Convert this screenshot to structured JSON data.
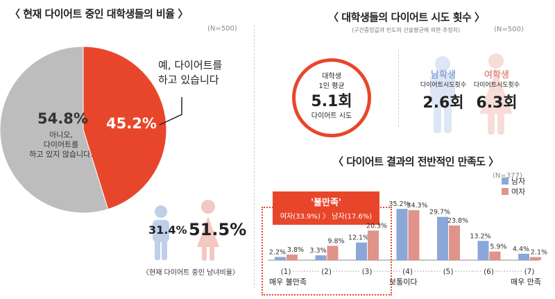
{
  "left": {
    "title": "〈 현재 다이어트 중인 대학생들의 비율 〉",
    "n": "(N=500)",
    "pie": {
      "yes_pct": "45.2%",
      "yes_label_1": "예, 다이어트를",
      "yes_label_2": "하고 있습니다",
      "no_pct": "54.8%",
      "no_label_1": "아니오,",
      "no_label_2": "다이어트를",
      "no_label_3": "하고 있지 않습니다."
    },
    "gender": {
      "male_pct": "31.4%",
      "female_pct": "51.5%",
      "caption": "〈현재 다이어트 중인 남녀비율〉"
    }
  },
  "right_top": {
    "title": "〈 대학생들의 다이어트 시도 횟수 〉",
    "subtitle": "(구간중앙값과 빈도의 산술평균에 의한 추정치)",
    "n": "(N=500)",
    "circle": {
      "l1": "대학생",
      "l2": "1인 평균",
      "value": "5.1회",
      "l3": "다이어트 시도"
    },
    "male": {
      "label": "남학생",
      "sub": "다이어트시도횟수",
      "value": "2.6회"
    },
    "female": {
      "label": "여학생",
      "sub": "다이어트시도횟수",
      "value": "6.3회"
    }
  },
  "right_bottom": {
    "title": "〈 다이어트 결과의 전반적인 만족도 〉",
    "n": "(N=377)",
    "callout_title": "'불만족'",
    "callout_detail": "여자(33.9%) 〉 남자(17.6%)",
    "left_end": "매우 불만족",
    "mid": "보통이다",
    "right_end": "매우 만족"
  },
  "colors": {
    "orange": "#e8462a",
    "gray": "#bdbdbd",
    "blue": "#8aa7d8",
    "pink": "#e0938b",
    "male_icon": "#bfcfea",
    "female_icon": "#f3c7c2"
  },
  "chart_data": [
    {
      "type": "pie",
      "title": "현재 다이어트 중인 대학생들의 비율",
      "slices": [
        {
          "label": "예, 다이어트를 하고 있습니다",
          "value": 45.2
        },
        {
          "label": "아니오, 다이어트를 하고 있지 않습니다.",
          "value": 54.8
        }
      ]
    },
    {
      "type": "bar",
      "title": "다이어트 결과의 전반적인 만족도",
      "categories": [
        "(1)",
        "(2)",
        "(3)",
        "(4)",
        "(5)",
        "(6)",
        "(7)"
      ],
      "series": [
        {
          "name": "남자",
          "values": [
            2.2,
            3.3,
            12.1,
            35.2,
            29.7,
            13.2,
            4.4
          ]
        },
        {
          "name": "여자",
          "values": [
            3.8,
            9.8,
            20.3,
            34.3,
            23.8,
            5.9,
            2.1
          ]
        }
      ],
      "value_labels": {
        "남자": [
          "2.2%",
          "3.3%",
          "12.1%",
          "35.2%",
          "29.7%",
          "13.2%",
          "4.4%"
        ],
        "여자": [
          "3.8%",
          "9.8%",
          "20.3%",
          "34.3%",
          "23.8%",
          "5.9%",
          "2.1%"
        ]
      },
      "legend": "top-right",
      "grid": false
    }
  ]
}
